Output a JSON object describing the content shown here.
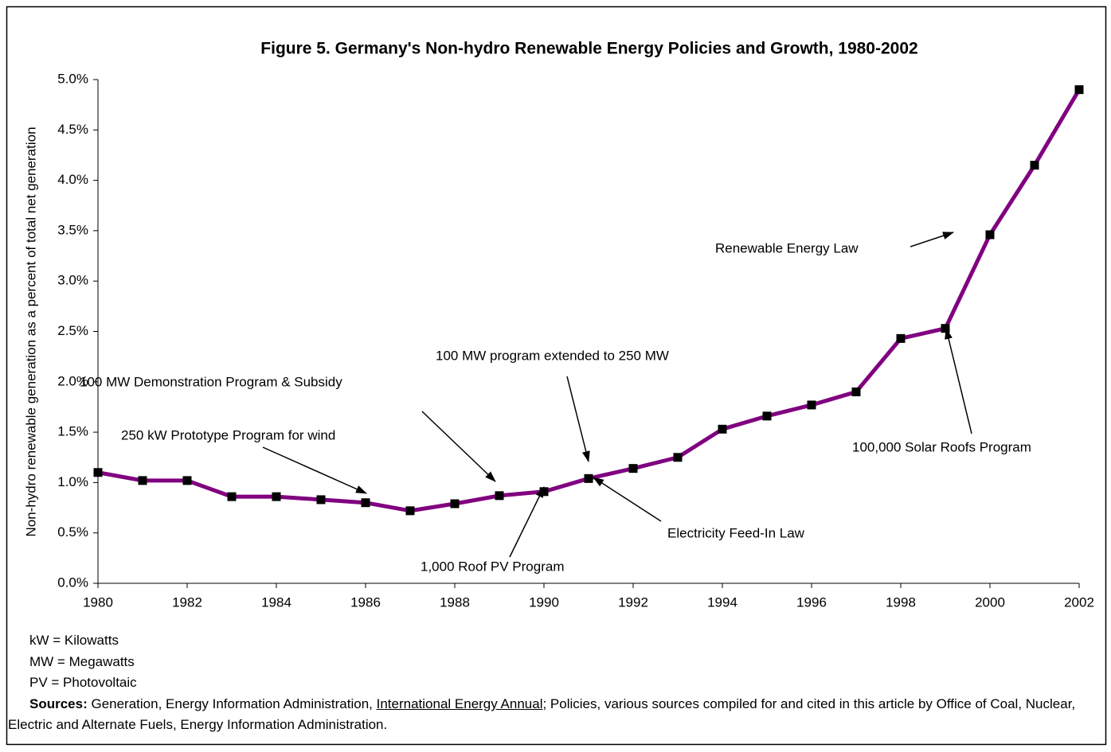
{
  "chart_data": {
    "type": "line",
    "title": "Figure 5. Germany's Non-hydro Renewable Energy Policies and Growth, 1980-2002",
    "y_label": "Non-hydro renewable generation as a percent of total net generation",
    "x": [
      1980,
      1981,
      1982,
      1983,
      1984,
      1985,
      1986,
      1987,
      1988,
      1989,
      1990,
      1991,
      1992,
      1993,
      1994,
      1995,
      1996,
      1997,
      1998,
      1999,
      2000,
      2001,
      2002
    ],
    "series": [
      {
        "name": "Germany",
        "color": "#800080",
        "values": [
          1.1,
          1.02,
          1.02,
          0.86,
          0.86,
          0.83,
          0.8,
          0.72,
          0.79,
          0.87,
          0.91,
          1.04,
          1.14,
          1.25,
          1.53,
          1.66,
          1.77,
          1.9,
          2.43,
          2.53,
          3.46,
          4.15,
          4.9
        ]
      }
    ],
    "xlim": [
      1980,
      2002
    ],
    "xticks": [
      1980,
      1982,
      1984,
      1986,
      1988,
      1990,
      1992,
      1994,
      1996,
      1998,
      2000,
      2002
    ],
    "ylim": [
      0,
      5
    ],
    "yticks": [
      {
        "value": 0,
        "label": "0.0%"
      },
      {
        "value": 0.5,
        "label": "0.5%"
      },
      {
        "value": 1,
        "label": "1.0%"
      },
      {
        "value": 1.5,
        "label": "1.5%"
      },
      {
        "value": 2,
        "label": "2.0%"
      },
      {
        "value": 2.5,
        "label": "2.5%"
      },
      {
        "value": 3,
        "label": "3.0%"
      },
      {
        "value": 3.5,
        "label": "3.5%"
      },
      {
        "value": 4,
        "label": "4.0%"
      },
      {
        "value": 4.5,
        "label": "4.5%"
      },
      {
        "value": 5,
        "label": "5.0%"
      }
    ],
    "grid": false,
    "annotations": [
      "250 kW Prototype Program for wind",
      "100 MW Demonstration Program & Subsidy",
      "100 MW program extended to 250 MW",
      "Renewable Energy Law",
      "100,000 Solar Roofs Program",
      "Electricity Feed-In Law",
      "1,000 Roof PV Program"
    ]
  },
  "footnotes": [
    "kW = Kilowatts",
    "MW = Megawatts",
    "PV = Photovoltaic"
  ],
  "sources": {
    "label": "Sources:",
    "text_before": " Generation, Energy Information Administration, ",
    "link": "International Energy Annual",
    "text_after": "; Policies, various sources compiled for and cited in this article by Office of Coal, Nuclear, Electric and Alternate Fuels, Energy Information Administration."
  }
}
